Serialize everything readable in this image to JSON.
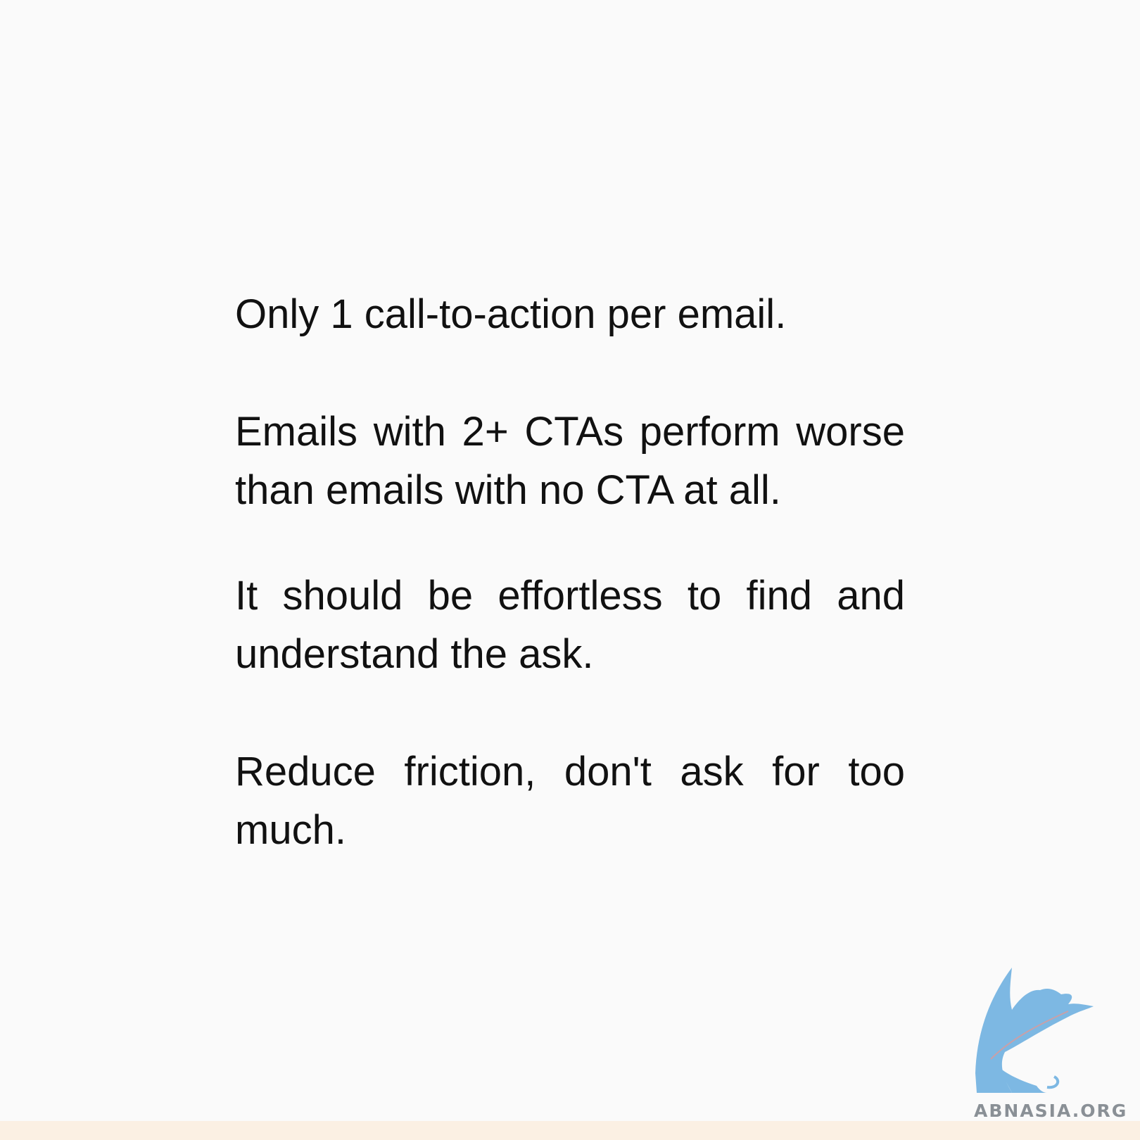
{
  "paragraphs": [
    "Only 1 call-to-action per email.",
    "Emails with 2+ CTAs perform worse than emails with no CTA at all.",
    "It should be effortless to find and understand the ask.",
    "Reduce friction, don't ask for too much."
  ],
  "logo": {
    "text": "ABNASIA.ORG"
  }
}
